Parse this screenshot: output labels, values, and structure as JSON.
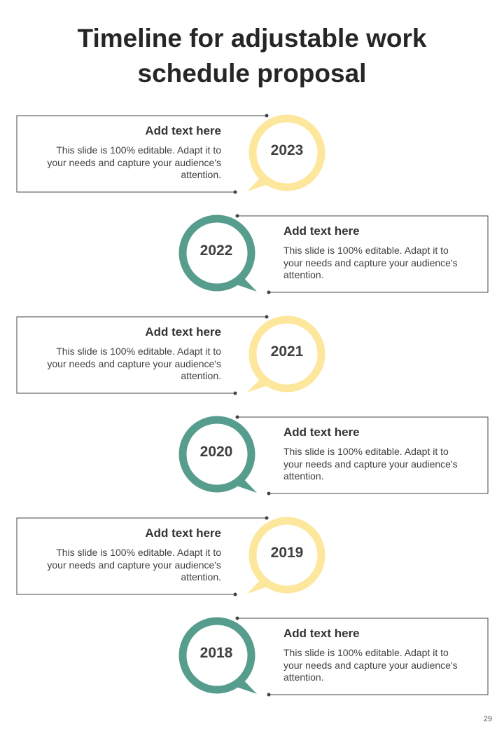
{
  "title": {
    "line1": "Timeline for adjustable work",
    "line2": "schedule proposal"
  },
  "colors": {
    "yellow": "#fde79c",
    "teal": "#569d8e",
    "border": "#444444"
  },
  "entries": [
    {
      "year": "2023",
      "heading": "Add text here",
      "body": "This slide is 100% editable.  Adapt it to your needs and capture your audience's attention."
    },
    {
      "year": "2022",
      "heading": "Add text here",
      "body": "This slide is 100% editable.  Adapt it to your needs and capture your audience's attention."
    },
    {
      "year": "2021",
      "heading": "Add text here",
      "body": "This slide is 100% editable.  Adapt it to your needs and capture your audience's attention."
    },
    {
      "year": "2020",
      "heading": "Add text here",
      "body": "This slide is 100% editable.  Adapt it to your needs and capture your audience's attention."
    },
    {
      "year": "2019",
      "heading": "Add text here",
      "body": "This slide is 100% editable.  Adapt it to your needs and capture your audience's attention."
    },
    {
      "year": "2018",
      "heading": "Add text here",
      "body": "This slide is 100% editable.  Adapt it to your needs and capture your audience's attention."
    }
  ],
  "page_number": "29"
}
